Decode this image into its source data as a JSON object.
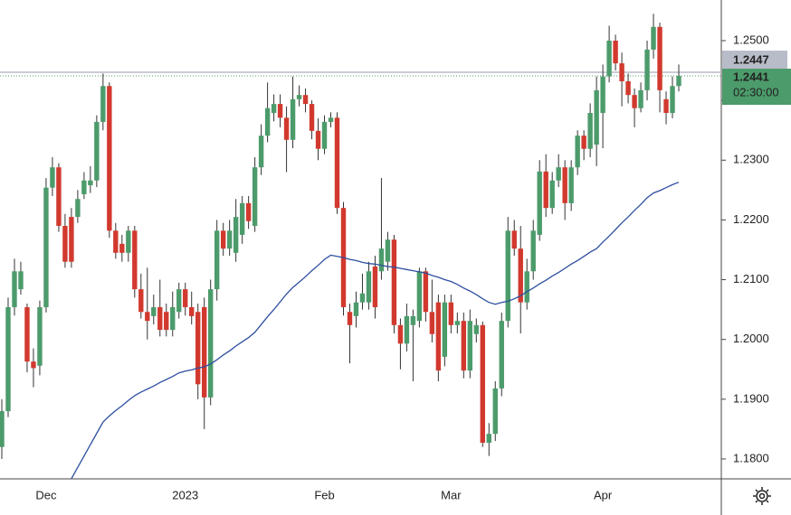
{
  "chart_data": {
    "type": "candlestick",
    "categories": [
      null,
      null,
      null,
      null,
      null,
      null,
      null,
      "Dec",
      null,
      null,
      null,
      null,
      null,
      null,
      null,
      null,
      null,
      null,
      null,
      null,
      null,
      null,
      null,
      null,
      null,
      null,
      null,
      null,
      null,
      "2023",
      null,
      null,
      null,
      null,
      null,
      null,
      null,
      null,
      null,
      null,
      null,
      null,
      null,
      null,
      null,
      null,
      null,
      null,
      null,
      null,
      null,
      "Feb",
      null,
      null,
      null,
      null,
      null,
      null,
      null,
      null,
      null,
      null,
      null,
      null,
      null,
      null,
      null,
      null,
      null,
      null,
      null,
      "Mar",
      null,
      null,
      null,
      null,
      null,
      null,
      null,
      null,
      null,
      null,
      null,
      null,
      null,
      null,
      null,
      null,
      null,
      null,
      null,
      null,
      null,
      null,
      null,
      "Apr",
      null,
      null,
      null,
      null,
      null,
      null,
      null,
      null,
      null,
      null,
      null,
      null
    ],
    "open": [
      1.182,
      1.188,
      1.2054,
      1.2084,
      1.2054,
      1.1963,
      1.1956,
      1.2054,
      1.2254,
      1.2288,
      1.219,
      1.2205,
      1.2205,
      1.2243,
      1.2258,
      1.2266,
      1.2364,
      1.2424,
      1.2182,
      1.216,
      1.2145,
      1.2182,
      1.2084,
      1.2046,
      1.2039,
      1.2054,
      1.2046,
      1.2016,
      1.2046,
      1.2084,
      1.2054,
      1.2046,
      1.2054,
      1.1903,
      1.2084,
      1.2182,
      1.2152,
      1.2145,
      1.2175,
      1.2228,
      1.219,
      1.2288,
      1.2341,
      1.2379,
      1.2394,
      1.2371,
      1.2334,
      1.2402,
      1.2409,
      1.2394,
      1.2349,
      1.2319,
      1.2364,
      1.2371,
      1.222,
      1.2046,
      1.2039,
      1.2062,
      1.2062,
      1.2122,
      1.2114,
      1.213,
      1.2167,
      1.2024,
      1.1993,
      1.2024,
      1.2031,
      1.2114,
      1.2046,
      1.2062,
      1.1971,
      1.2062,
      1.2024,
      1.2031,
      1.1948,
      1.2009,
      1.2024,
      1.1827,
      1.1842,
      1.1918,
      1.2031,
      1.2182,
      1.2152,
      1.2062,
      1.2114,
      1.2175,
      1.2281,
      1.222,
      1.2266,
      1.2288,
      1.2228,
      1.2288,
      1.2341,
      1.2319,
      1.2326,
      1.2379,
      1.244,
      1.25,
      1.2462,
      1.2432,
      1.2409,
      1.2387,
      1.2417,
      1.2485,
      1.2523,
      1.2402,
      1.2379,
      1.2424
    ],
    "high": [
      1.19,
      1.207,
      1.2135,
      1.213,
      1.206,
      1.1985,
      1.2065,
      1.227,
      1.2305,
      1.2295,
      1.221,
      1.222,
      1.225,
      1.228,
      1.229,
      1.2375,
      1.2445,
      1.243,
      1.2195,
      1.2175,
      1.219,
      1.219,
      1.211,
      1.212,
      1.2075,
      1.21,
      1.206,
      1.208,
      1.2095,
      1.2095,
      1.208,
      1.206,
      1.207,
      1.21,
      1.22,
      1.2195,
      1.22,
      1.2235,
      1.224,
      1.224,
      1.2305,
      1.236,
      1.243,
      1.241,
      1.241,
      1.239,
      1.244,
      1.2425,
      1.242,
      1.24,
      1.237,
      1.2375,
      1.238,
      1.238,
      1.223,
      1.206,
      1.208,
      1.211,
      1.213,
      1.214,
      1.227,
      1.218,
      1.2175,
      1.2035,
      1.206,
      1.205,
      1.212,
      1.212,
      1.21,
      1.2075,
      1.2075,
      1.2075,
      1.2045,
      1.2045,
      1.205,
      1.2035,
      1.203,
      1.186,
      1.193,
      1.2045,
      1.2205,
      1.22,
      1.219,
      1.2135,
      1.22,
      1.23,
      1.231,
      1.228,
      1.231,
      1.23,
      1.23,
      1.235,
      1.235,
      1.2395,
      1.244,
      1.246,
      1.2525,
      1.251,
      1.248,
      1.2445,
      1.242,
      1.243,
      1.25,
      1.2545,
      1.253,
      1.2415,
      1.244,
      1.246
    ],
    "low": [
      1.18,
      1.187,
      1.204,
      1.2075,
      1.1945,
      1.192,
      1.194,
      1.2045,
      1.224,
      1.218,
      1.212,
      1.212,
      1.2195,
      1.2235,
      1.2245,
      1.2255,
      1.235,
      1.217,
      1.2135,
      1.213,
      1.213,
      1.207,
      1.2035,
      1.2,
      1.2025,
      1.2005,
      1.2005,
      1.2005,
      1.2035,
      1.204,
      1.2025,
      1.19,
      1.185,
      1.189,
      1.2065,
      1.214,
      1.214,
      1.213,
      1.216,
      1.2185,
      1.218,
      1.2275,
      1.233,
      1.2365,
      1.2355,
      1.228,
      1.232,
      1.239,
      1.238,
      1.2335,
      1.23,
      1.231,
      1.2355,
      1.221,
      1.204,
      1.196,
      1.202,
      1.205,
      1.205,
      1.2035,
      1.21,
      1.2115,
      1.201,
      1.195,
      1.198,
      1.193,
      1.202,
      1.203,
      1.1995,
      1.193,
      1.1955,
      1.201,
      1.201,
      1.1935,
      1.1935,
      1.1995,
      1.182,
      1.1805,
      1.183,
      1.1905,
      1.202,
      1.214,
      1.201,
      1.205,
      1.21,
      1.2165,
      1.2205,
      1.221,
      1.2255,
      1.22,
      1.2215,
      1.2275,
      1.23,
      1.2305,
      1.229,
      1.232,
      1.243,
      1.245,
      1.239,
      1.2395,
      1.2355,
      1.238,
      1.24,
      1.247,
      1.238,
      1.236,
      1.237,
      1.2415
    ],
    "close": [
      1.188,
      1.2054,
      1.2114,
      1.2114,
      1.1963,
      1.1952,
      1.2054,
      1.2254,
      1.2288,
      1.219,
      1.213,
      1.213,
      1.2235,
      1.2266,
      1.2266,
      1.2364,
      1.2424,
      1.2182,
      1.2145,
      1.2145,
      1.2182,
      1.2084,
      1.2046,
      1.2031,
      1.2054,
      1.2016,
      1.2016,
      1.2054,
      1.2084,
      1.2054,
      1.2039,
      1.1925,
      1.1903,
      1.2084,
      1.2182,
      1.2152,
      1.2182,
      1.2205,
      1.2228,
      1.2198,
      1.2288,
      1.2341,
      1.2387,
      1.2394,
      1.2371,
      1.2334,
      1.2402,
      1.2409,
      1.2394,
      1.2349,
      1.2319,
      1.2364,
      1.2371,
      1.222,
      1.2054,
      1.2024,
      1.2062,
      1.2077,
      1.2114,
      1.2054,
      1.2152,
      1.2167,
      1.2024,
      1.1993,
      1.2039,
      1.2039,
      1.2114,
      1.2046,
      1.2009,
      1.1948,
      1.2062,
      1.2024,
      1.2031,
      1.1948,
      1.2031,
      1.2024,
      1.1827,
      1.1842,
      1.1918,
      1.2031,
      1.2182,
      1.2152,
      1.2062,
      1.2114,
      1.2182,
      1.2281,
      1.222,
      1.2266,
      1.2288,
      1.2228,
      1.2288,
      1.2341,
      1.2319,
      1.2379,
      1.2417,
      1.244,
      1.25,
      1.2462,
      1.2432,
      1.2409,
      1.2387,
      1.2417,
      1.2485,
      1.2523,
      1.2417,
      1.2379,
      1.2424,
      1.2441
    ],
    "up_color": "#4c9b6b",
    "down_color": "#d2392e",
    "wick_color": "#333333",
    "moving_average": {
      "color": "#2d4ea0",
      "values": [
        null,
        null,
        null,
        null,
        null,
        null,
        null,
        null,
        null,
        null,
        null,
        1.1767,
        1.1786,
        1.1805,
        1.1824,
        1.1843,
        1.1862,
        1.1872,
        1.1881,
        1.1889,
        1.1898,
        1.1906,
        1.1912,
        1.1917,
        1.1922,
        1.1928,
        1.1933,
        1.1938,
        1.1944,
        1.1947,
        1.1949,
        1.1952,
        1.1954,
        1.1959,
        1.1966,
        1.1974,
        1.1981,
        1.1989,
        1.1996,
        1.2003,
        1.2012,
        1.2025,
        1.2038,
        1.205,
        1.2063,
        1.2076,
        1.2087,
        1.2096,
        1.2105,
        1.2115,
        1.2124,
        1.2134,
        1.2141,
        1.2139,
        1.2137,
        1.2134,
        1.2132,
        1.2129,
        1.2127,
        1.2126,
        1.2124,
        1.2122,
        1.2121,
        1.2119,
        1.2117,
        1.2115,
        1.2113,
        1.2111,
        1.2107,
        1.2104,
        1.21,
        1.2097,
        1.2092,
        1.2086,
        1.2081,
        1.2075,
        1.2068,
        1.2062,
        1.2059,
        1.2062,
        1.2064,
        1.2068,
        1.2073,
        1.208,
        1.2086,
        1.2093,
        1.2099,
        1.2106,
        1.2112,
        1.2119,
        1.2126,
        1.2132,
        1.2139,
        1.2146,
        1.2152,
        1.2163,
        1.2173,
        1.2184,
        1.2195,
        1.2205,
        1.2216,
        1.2226,
        1.2237,
        1.2245,
        1.2249,
        1.2254,
        1.2259,
        1.2263
      ]
    },
    "ylim": [
      1.17667,
      1.2568
    ],
    "yticks": [
      {
        "value": 1.25,
        "label": "1.2500"
      },
      {
        "value": 1.24,
        "label": "1.2400"
      },
      {
        "value": 1.23,
        "label": "1.2300"
      },
      {
        "value": 1.22,
        "label": "1.2200"
      },
      {
        "value": 1.21,
        "label": "1.2100"
      },
      {
        "value": 1.2,
        "label": "1.2000"
      },
      {
        "value": 1.19,
        "label": "1.1900"
      },
      {
        "value": 1.18,
        "label": "1.1800"
      }
    ],
    "price_line": {
      "value": 1.2447,
      "color": "#b8bcc8"
    },
    "current_price": {
      "value": 1.2441,
      "countdown": "02:30:00",
      "color": "#4c9b6b"
    },
    "grid": false
  }
}
